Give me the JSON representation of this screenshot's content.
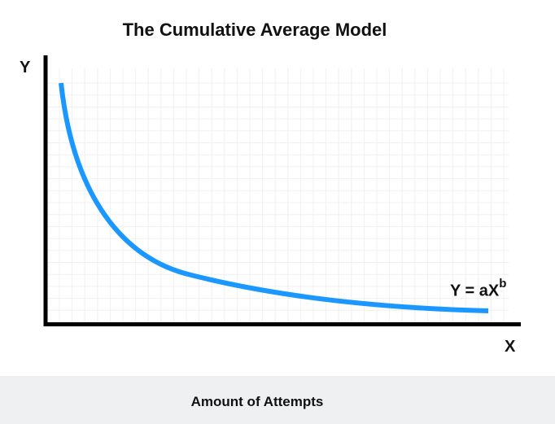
{
  "title": "The Cumulative Average Model",
  "y_axis_label": "Y",
  "x_axis_label": "X",
  "equation": {
    "base": "Y = aX",
    "exponent": "b"
  },
  "caption": "Amount of Attempts",
  "colors": {
    "curve": "#1a98ff",
    "axes": "#000000",
    "grid": "#f0f0f0",
    "caption_bg": "#eff0f2"
  }
}
